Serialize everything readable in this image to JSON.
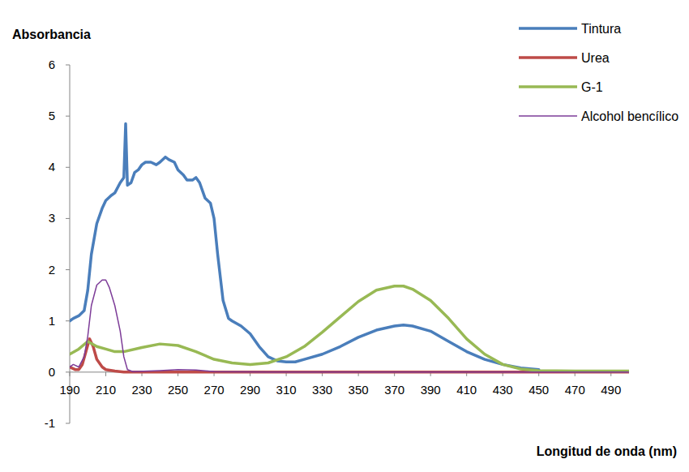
{
  "chart_data": {
    "type": "line",
    "y_label": "Absorbancia",
    "x_label": "Longitud de onda (nm)",
    "xlim": [
      190,
      500
    ],
    "xticks": [
      190,
      210,
      230,
      250,
      270,
      290,
      310,
      330,
      350,
      370,
      390,
      410,
      430,
      450,
      470,
      490
    ],
    "ylim": [
      -1,
      6
    ],
    "yticks": [
      -1,
      0,
      1,
      2,
      3,
      4,
      5,
      6
    ],
    "grid": false,
    "legend": "top-right",
    "series": [
      {
        "name": "Tintura",
        "color": "#4a7ebb",
        "x": [
          190,
          192,
          195,
          198,
          200,
          202,
          205,
          208,
          210,
          213,
          215,
          218,
          220,
          221,
          222,
          224,
          226,
          228,
          230,
          232,
          235,
          238,
          240,
          243,
          245,
          248,
          250,
          253,
          255,
          258,
          260,
          262,
          265,
          268,
          270,
          272,
          275,
          278,
          280,
          285,
          290,
          295,
          300,
          305,
          310,
          315,
          320,
          330,
          340,
          350,
          360,
          370,
          375,
          380,
          390,
          400,
          410,
          420,
          430,
          440,
          450
        ],
        "values": [
          1.0,
          1.05,
          1.1,
          1.2,
          1.6,
          2.3,
          2.9,
          3.2,
          3.35,
          3.45,
          3.5,
          3.7,
          3.8,
          4.85,
          3.65,
          3.7,
          3.9,
          3.95,
          4.05,
          4.1,
          4.1,
          4.05,
          4.1,
          4.2,
          4.15,
          4.1,
          3.95,
          3.85,
          3.75,
          3.75,
          3.8,
          3.7,
          3.4,
          3.3,
          3.0,
          2.3,
          1.4,
          1.05,
          1.0,
          0.9,
          0.75,
          0.5,
          0.3,
          0.22,
          0.2,
          0.2,
          0.25,
          0.35,
          0.5,
          0.68,
          0.82,
          0.9,
          0.92,
          0.9,
          0.8,
          0.6,
          0.4,
          0.25,
          0.15,
          0.08,
          0.05
        ]
      },
      {
        "name": "Urea",
        "color": "#be4b48",
        "x": [
          190,
          193,
          195,
          197,
          199,
          201,
          203,
          205,
          208,
          210,
          215,
          220,
          230,
          300,
          400,
          500
        ],
        "values": [
          0.1,
          0.05,
          0.05,
          0.15,
          0.4,
          0.65,
          0.5,
          0.25,
          0.1,
          0.05,
          0.02,
          0,
          0,
          0,
          0,
          0
        ]
      },
      {
        "name": "G-1",
        "color": "#98b954",
        "x": [
          190,
          195,
          200,
          205,
          210,
          215,
          220,
          230,
          240,
          250,
          260,
          270,
          280,
          290,
          300,
          310,
          320,
          330,
          340,
          350,
          360,
          370,
          375,
          380,
          390,
          400,
          410,
          420,
          430,
          440,
          450,
          470,
          490,
          500
        ],
        "values": [
          0.35,
          0.45,
          0.6,
          0.5,
          0.45,
          0.4,
          0.4,
          0.48,
          0.55,
          0.52,
          0.4,
          0.25,
          0.18,
          0.15,
          0.18,
          0.3,
          0.5,
          0.78,
          1.08,
          1.38,
          1.6,
          1.68,
          1.68,
          1.62,
          1.4,
          1.05,
          0.65,
          0.35,
          0.15,
          0.06,
          0.03,
          0.02,
          0.02,
          0.02
        ]
      },
      {
        "name": "Alcohol bencílico",
        "color": "#7d3c98",
        "x": [
          190,
          192,
          195,
          198,
          200,
          202,
          205,
          208,
          210,
          212,
          215,
          218,
          220,
          222,
          225,
          240,
          250,
          260,
          270,
          300,
          400,
          500
        ],
        "values": [
          0.1,
          0.15,
          0.1,
          0.3,
          0.7,
          1.3,
          1.7,
          1.8,
          1.8,
          1.65,
          1.3,
          0.8,
          0.3,
          0.05,
          0.01,
          0.03,
          0.05,
          0.04,
          0.01,
          0,
          0,
          0
        ]
      }
    ]
  }
}
